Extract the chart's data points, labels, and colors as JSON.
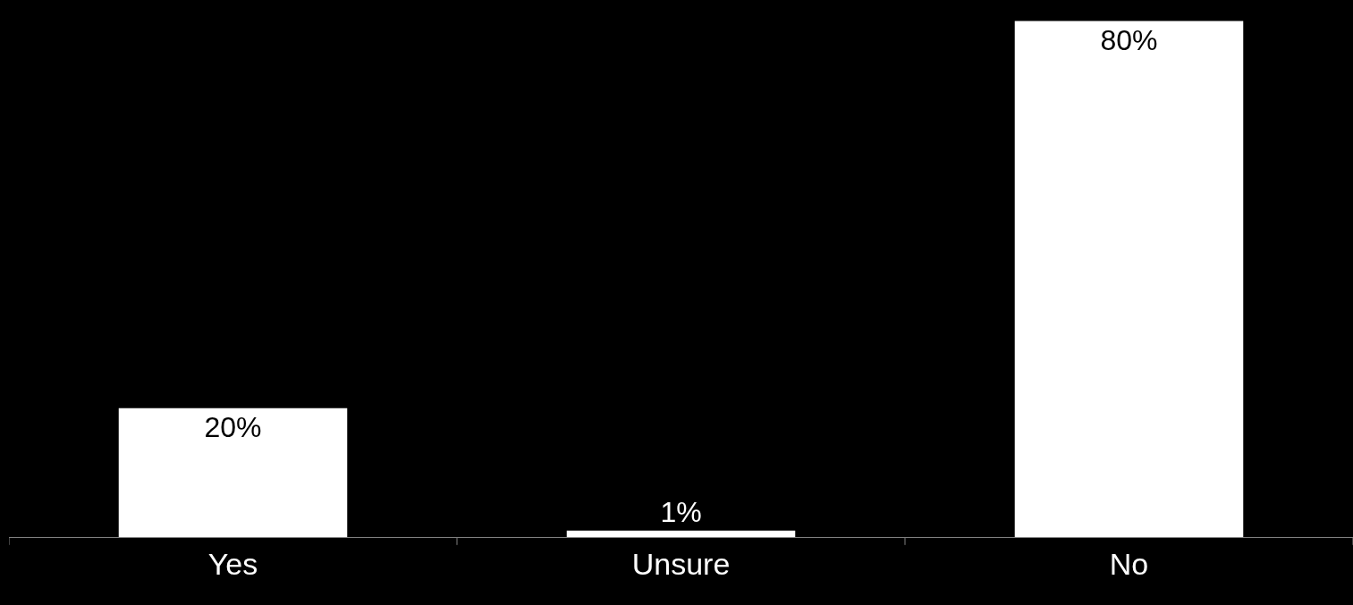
{
  "chart_data": {
    "type": "bar",
    "categories": [
      "Yes",
      "Unsure",
      "No"
    ],
    "values": [
      20,
      1,
      80
    ],
    "color": "#ffffff",
    "value_labels": [
      "20%",
      "1%",
      "80%"
    ]
  }
}
